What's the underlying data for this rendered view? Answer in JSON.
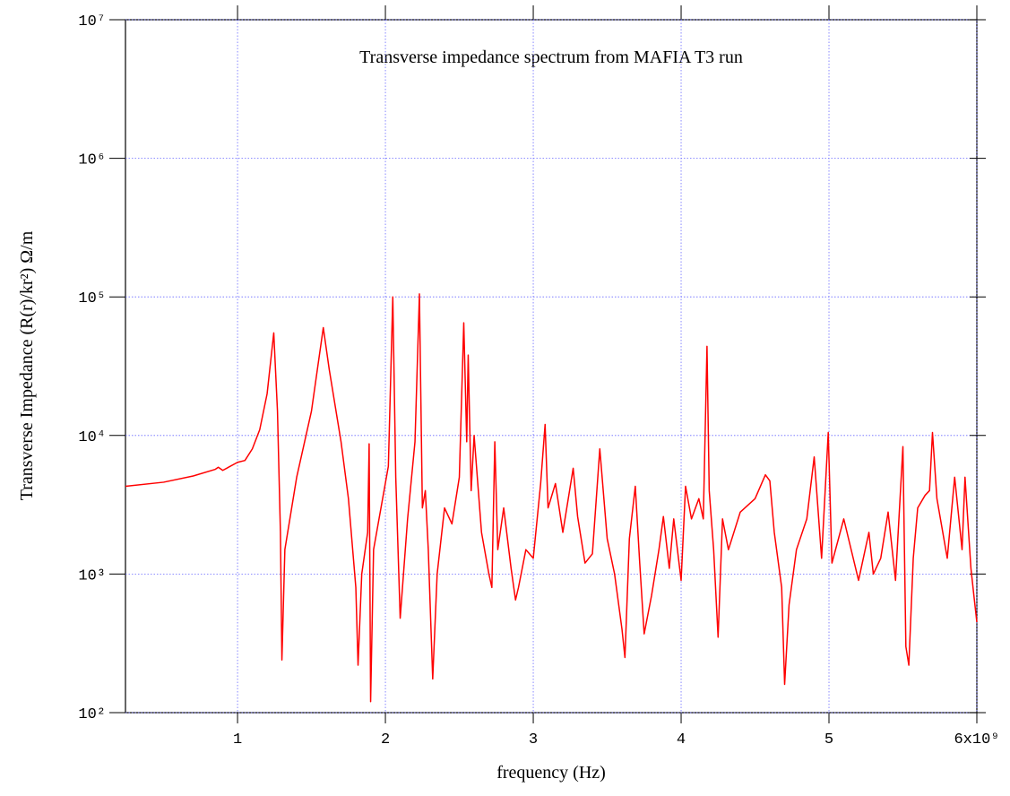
{
  "chart_data": {
    "type": "line",
    "title": "Transverse impedance spectrum from MAFIA T3 run",
    "xlabel": "frequency (Hz)",
    "ylabel": "Transverse Impedance (R(r)/kr²) Ω/m",
    "color": "#ff0000",
    "yscale": "log",
    "grid": true,
    "xlim": [
      242000000.0,
      6000000000.0
    ],
    "ylim": [
      100,
      10000000
    ],
    "xticks": [
      {
        "value": 1000000000.0,
        "label": "1"
      },
      {
        "value": 2000000000.0,
        "label": "2"
      },
      {
        "value": 3000000000.0,
        "label": "3"
      },
      {
        "value": 4000000000.0,
        "label": "4"
      },
      {
        "value": 5000000000.0,
        "label": "5"
      },
      {
        "value": 6000000000.0,
        "label": "6x10⁹"
      }
    ],
    "yticks": [
      {
        "value": 100,
        "label": "10²"
      },
      {
        "value": 1000,
        "label": "10³"
      },
      {
        "value": 10000,
        "label": "10⁴"
      },
      {
        "value": 100000,
        "label": "10⁵"
      },
      {
        "value": 1000000,
        "label": "10⁶"
      },
      {
        "value": 10000000,
        "label": "10⁷"
      }
    ],
    "x": [
      242000000.0,
      500000000.0,
      700000000.0,
      850000000.0,
      870000000.0,
      900000000.0,
      1000000000.0,
      1050000000.0,
      1100000000.0,
      1150000000.0,
      1200000000.0,
      1245000000.0,
      1270000000.0,
      1290000000.0,
      1300000000.0,
      1320000000.0,
      1400000000.0,
      1500000000.0,
      1580000000.0,
      1620000000.0,
      1700000000.0,
      1750000000.0,
      1800000000.0,
      1815000000.0,
      1840000000.0,
      1880000000.0,
      1890000000.0,
      1900000000.0,
      1920000000.0,
      1970000000.0,
      2020000000.0,
      2050000000.0,
      2070000000.0,
      2100000000.0,
      2150000000.0,
      2200000000.0,
      2230000000.0,
      2250000000.0,
      2270000000.0,
      2290000000.0,
      2320000000.0,
      2350000000.0,
      2400000000.0,
      2450000000.0,
      2500000000.0,
      2530000000.0,
      2550000000.0,
      2560000000.0,
      2580000000.0,
      2600000000.0,
      2650000000.0,
      2700000000.0,
      2720000000.0,
      2740000000.0,
      2760000000.0,
      2800000000.0,
      2850000000.0,
      2880000000.0,
      2900000000.0,
      2950000000.0,
      3000000000.0,
      3050000000.0,
      3080000000.0,
      3100000000.0,
      3150000000.0,
      3200000000.0,
      3270000000.0,
      3300000000.0,
      3350000000.0,
      3400000000.0,
      3450000000.0,
      3500000000.0,
      3550000000.0,
      3600000000.0,
      3620000000.0,
      3650000000.0,
      3690000000.0,
      3720000000.0,
      3750000000.0,
      3800000000.0,
      3850000000.0,
      3880000000.0,
      3920000000.0,
      3950000000.0,
      4000000000.0,
      4030000000.0,
      4070000000.0,
      4120000000.0,
      4150000000.0,
      4175000000.0,
      4190000000.0,
      4220000000.0,
      4250000000.0,
      4280000000.0,
      4320000000.0,
      4400000000.0,
      4500000000.0,
      4570000000.0,
      4600000000.0,
      4630000000.0,
      4680000000.0,
      4700000000.0,
      4730000000.0,
      4780000000.0,
      4850000000.0,
      4900000000.0,
      4950000000.0,
      4995000000.0,
      5020000000.0,
      5100000000.0,
      5200000000.0,
      5270000000.0,
      5300000000.0,
      5350000000.0,
      5400000000.0,
      5450000000.0,
      5500000000.0,
      5520000000.0,
      5540000000.0,
      5570000000.0,
      5600000000.0,
      5650000000.0,
      5680000000.0,
      5700000000.0,
      5730000000.0,
      5800000000.0,
      5850000000.0,
      5900000000.0,
      5920000000.0,
      5960000000.0,
      5980000000.0,
      6000000000.0
    ],
    "values": [
      4300,
      4600,
      5100,
      5700,
      5900,
      5600,
      6400,
      6600,
      8000,
      11000,
      20000,
      55000,
      15000,
      2000,
      240,
      1500,
      5000,
      15000,
      60000,
      30000,
      9000,
      3500,
      800,
      220,
      1000,
      2000,
      8700,
      120,
      1500,
      3000,
      6000,
      100000,
      5000,
      480,
      2500,
      9000,
      105000,
      3000,
      4000,
      1500,
      175,
      1000,
      3000,
      2300,
      5000,
      65000,
      9000,
      38000,
      4000,
      10000,
      2000,
      1000,
      800,
      9000,
      1500,
      3000,
      1100,
      650,
      800,
      1500,
      1300,
      4500,
      12000,
      3000,
      4500,
      2000,
      5800,
      2600,
      1200,
      1400,
      8000,
      1800,
      1000,
      400,
      250,
      1800,
      4300,
      1200,
      370,
      700,
      1500,
      2600,
      1100,
      2500,
      900,
      4300,
      2500,
      3500,
      2500,
      44000,
      4000,
      1500,
      350,
      2500,
      1500,
      2800,
      3500,
      5200,
      4700,
      2000,
      800,
      160,
      600,
      1500,
      2500,
      7000,
      1300,
      10500,
      1200,
      2500,
      900,
      2000,
      1000,
      1300,
      2800,
      900,
      8300,
      300,
      220,
      1300,
      3000,
      3700,
      4000,
      10500,
      3500,
      1300,
      5000,
      1500,
      5000,
      1100,
      700,
      450
    ]
  }
}
